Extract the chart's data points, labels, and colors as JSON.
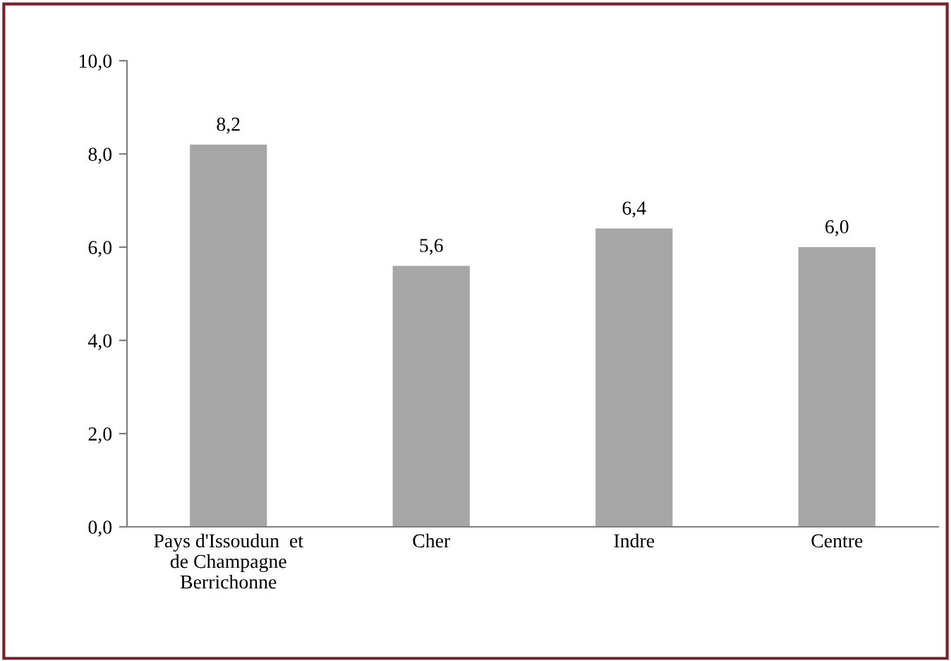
{
  "chart_data": {
    "type": "bar",
    "categories": [
      "Pays d'Issoudun  et\nde Champagne\nBerrichonne",
      "Cher",
      "Indre",
      "Centre"
    ],
    "values": [
      8.2,
      5.6,
      6.4,
      6.0
    ],
    "value_labels": [
      "8,2",
      "5,6",
      "6,4",
      "6,0"
    ],
    "color": "#a6a6a6",
    "ylim": [
      0,
      10
    ],
    "yticks": [
      {
        "value": 0,
        "label": "0,0"
      },
      {
        "value": 2,
        "label": "2,0"
      },
      {
        "value": 4,
        "label": "4,0"
      },
      {
        "value": 6,
        "label": "6,0"
      },
      {
        "value": 8,
        "label": "8,0"
      },
      {
        "value": 10,
        "label": "10,0"
      }
    ],
    "grid": false,
    "legend": false
  }
}
